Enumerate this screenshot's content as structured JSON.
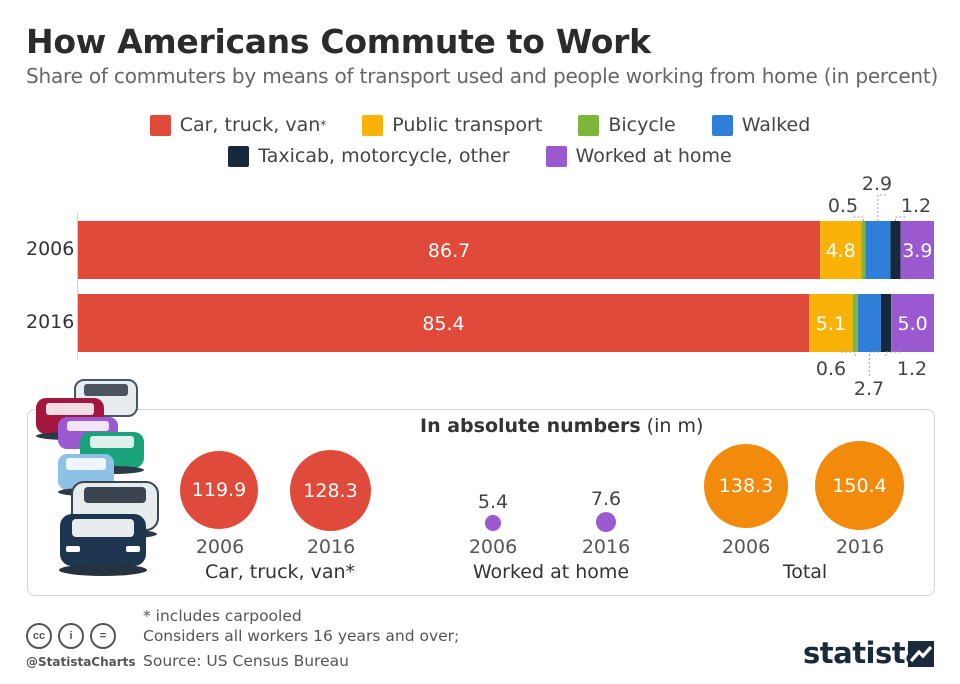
{
  "title": "How Americans Commute to Work",
  "subtitle": "Share of commuters by means of transport used and people working from home (in percent)",
  "legend": [
    {
      "label": "Car, truck, van",
      "sup": "*",
      "color": "#e04a3a"
    },
    {
      "label": "Public transport",
      "sup": "",
      "color": "#f9b208"
    },
    {
      "label": "Bicycle",
      "sup": "",
      "color": "#7db63a"
    },
    {
      "label": "Walked",
      "sup": "",
      "color": "#2f7fd9"
    },
    {
      "label": "Taxicab, motorcycle, other",
      "sup": "",
      "color": "#16283c"
    },
    {
      "label": "Worked at home",
      "sup": "",
      "color": "#9b59d0"
    }
  ],
  "chart_data": {
    "type": "bar",
    "orientation": "horizontal",
    "stacked": true,
    "categories": [
      "2006",
      "2016"
    ],
    "series": [
      {
        "name": "Car, truck, van*",
        "color": "#e04a3a",
        "values": [
          86.7,
          85.4
        ]
      },
      {
        "name": "Public transport",
        "color": "#f9b208",
        "values": [
          4.8,
          5.1
        ]
      },
      {
        "name": "Bicycle",
        "color": "#7db63a",
        "values": [
          0.5,
          0.6
        ]
      },
      {
        "name": "Walked",
        "color": "#2f7fd9",
        "values": [
          2.9,
          2.7
        ]
      },
      {
        "name": "Taxicab, motorcycle, other",
        "color": "#16283c",
        "values": [
          1.2,
          1.2
        ]
      },
      {
        "name": "Worked at home",
        "color": "#9b59d0",
        "values": [
          3.9,
          5.0
        ]
      }
    ],
    "xlim": [
      0,
      100
    ],
    "legend_position": "top"
  },
  "absolute": {
    "title_bold": "In absolute numbers",
    "title_unit": " (in m)",
    "groups": [
      {
        "label": "Car, truck, van*",
        "color": "#e04a3a",
        "values": [
          "119.9",
          "128.3"
        ],
        "years": [
          "2006",
          "2016"
        ]
      },
      {
        "label": "Worked at home",
        "color": "#9b59d0",
        "values": [
          "5.4",
          "7.6"
        ],
        "years": [
          "2006",
          "2016"
        ]
      },
      {
        "label": "Total",
        "color": "#f28a0c",
        "values": [
          "138.3",
          "150.4"
        ],
        "years": [
          "2006",
          "2016"
        ]
      }
    ]
  },
  "footnotes": {
    "line1": "* includes carpooled",
    "line2": "Considers all workers 16 years and over;",
    "line3": "Source: US Census Bureau"
  },
  "handle": "@StatistaCharts",
  "brand": "statista"
}
